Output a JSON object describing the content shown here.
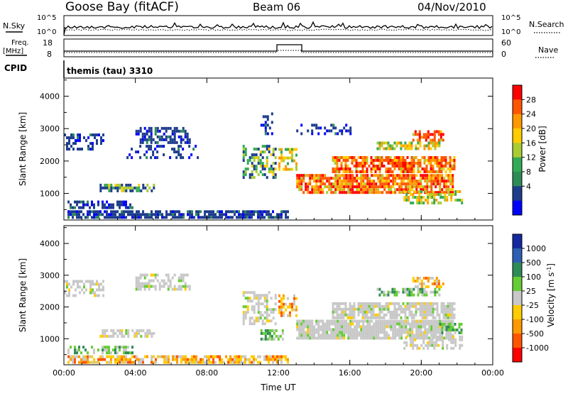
{
  "header": {
    "station": "Goose Bay (fitACF)",
    "beam": "Beam 06",
    "date": "04/Nov/2010"
  },
  "status_panels": {
    "nsky": {
      "label": "N.Sky",
      "ticks": [
        "10^5",
        "10^0"
      ],
      "right_label": "N.Search",
      "right_ticks": [
        "10^5",
        "10^0"
      ]
    },
    "freq": {
      "label_line1": "Freq.",
      "label_line2": "[MHz]",
      "ticks": [
        "18",
        "8"
      ],
      "right_label": "Nave",
      "right_ticks": [
        "60",
        "0"
      ]
    },
    "cpid": {
      "label": "CPID",
      "value": "themis (tau) 3310"
    }
  },
  "chart_data": [
    {
      "type": "heatmap",
      "name": "power",
      "ylabel": "Slant Range [km]",
      "ylim": [
        180,
        4560
      ],
      "yticks": [
        1000,
        2000,
        3000,
        4000
      ],
      "xlim": [
        0,
        24
      ],
      "xticks": [
        "00:00",
        "04:00",
        "08:00",
        "12:00",
        "16:00",
        "20:00",
        "00:00"
      ],
      "colorbar": {
        "label": "Power [dB]",
        "ticks": [
          "28",
          "24",
          "20",
          "16",
          "12",
          "8",
          "4"
        ],
        "colors": [
          "#ff0000",
          "#ff5500",
          "#ff9900",
          "#ffcc00",
          "#aacc33",
          "#33aa55",
          "#2e8b57",
          "#1e3c8c",
          "#0000ff"
        ]
      },
      "regions": [
        {
          "t0": 0.2,
          "t1": 12.5,
          "r0": 220,
          "r1": 480,
          "cls": "low",
          "density": 0.75
        },
        {
          "t0": 0.2,
          "t1": 3.8,
          "r0": 600,
          "r1": 780,
          "cls": "low",
          "density": 0.55
        },
        {
          "t0": 0.0,
          "t1": 2.2,
          "r0": 2400,
          "r1": 2850,
          "cls": "low",
          "density": 0.5
        },
        {
          "t0": 2.0,
          "t1": 5.0,
          "r0": 1050,
          "r1": 1300,
          "cls": "lowmid",
          "density": 0.65
        },
        {
          "t0": 4.0,
          "t1": 7.0,
          "r0": 2550,
          "r1": 3050,
          "cls": "low",
          "density": 0.6
        },
        {
          "t0": 3.5,
          "t1": 7.5,
          "r0": 2100,
          "r1": 2500,
          "cls": "low",
          "density": 0.3
        },
        {
          "t0": 10.0,
          "t1": 11.8,
          "r0": 1500,
          "r1": 2500,
          "cls": "lowmid",
          "density": 0.5
        },
        {
          "t0": 11.0,
          "t1": 11.6,
          "r0": 2800,
          "r1": 3500,
          "cls": "low",
          "density": 0.4
        },
        {
          "t0": 12.0,
          "t1": 13.0,
          "r0": 1700,
          "r1": 2400,
          "cls": "mid",
          "density": 0.55
        },
        {
          "t0": 13.0,
          "t1": 21.8,
          "r0": 1050,
          "r1": 1600,
          "cls": "high",
          "density": 0.85
        },
        {
          "t0": 15.0,
          "t1": 21.8,
          "r0": 1700,
          "r1": 2150,
          "cls": "high",
          "density": 0.75
        },
        {
          "t0": 17.5,
          "t1": 21.0,
          "r0": 2350,
          "r1": 2600,
          "cls": "mid",
          "density": 0.6
        },
        {
          "t0": 19.5,
          "t1": 21.2,
          "r0": 2650,
          "r1": 2950,
          "cls": "high",
          "density": 0.6
        },
        {
          "t0": 19.0,
          "t1": 22.3,
          "r0": 700,
          "r1": 1100,
          "cls": "mid",
          "density": 0.5
        },
        {
          "t0": 13.0,
          "t1": 16.0,
          "r0": 2800,
          "r1": 3150,
          "cls": "low",
          "density": 0.35
        }
      ]
    },
    {
      "type": "heatmap",
      "name": "velocity",
      "ylabel": "Slant Range [km]",
      "ylim": [
        180,
        4560
      ],
      "yticks": [
        1000,
        2000,
        3000,
        4000
      ],
      "xlim": [
        0,
        24
      ],
      "xticks": [
        "00:00",
        "04:00",
        "08:00",
        "12:00",
        "16:00",
        "20:00",
        "00:00"
      ],
      "xlabel": "Time UT",
      "colorbar": {
        "label": "Velocity [m s^-1]",
        "ticks": [
          "1000",
          "500",
          "100",
          "25",
          "-25",
          "-100",
          "-500",
          "-1000"
        ],
        "colors": [
          "#1428a0",
          "#2d5fb4",
          "#2e8b57",
          "#66cc33",
          "#c8c8c8",
          "#ffcc00",
          "#ff9900",
          "#ff5500",
          "#ff0000"
        ]
      },
      "regions": [
        {
          "t0": 0.2,
          "t1": 12.5,
          "r0": 220,
          "r1": 480,
          "cls": "vorange",
          "density": 0.7
        },
        {
          "t0": 0.2,
          "t1": 3.8,
          "r0": 600,
          "r1": 780,
          "cls": "vgreen",
          "density": 0.5
        },
        {
          "t0": 0.0,
          "t1": 2.2,
          "r0": 2400,
          "r1": 2850,
          "cls": "grey",
          "density": 0.45
        },
        {
          "t0": 2.0,
          "t1": 5.0,
          "r0": 1050,
          "r1": 1300,
          "cls": "grey",
          "density": 0.6
        },
        {
          "t0": 4.0,
          "t1": 7.0,
          "r0": 2550,
          "r1": 3050,
          "cls": "grey",
          "density": 0.6
        },
        {
          "t0": 10.0,
          "t1": 11.8,
          "r0": 1500,
          "r1": 2500,
          "cls": "grey",
          "density": 0.5
        },
        {
          "t0": 11.0,
          "t1": 12.2,
          "r0": 1000,
          "r1": 1300,
          "cls": "vgreen",
          "density": 0.6
        },
        {
          "t0": 12.0,
          "t1": 13.0,
          "r0": 1700,
          "r1": 2400,
          "cls": "vorange",
          "density": 0.45
        },
        {
          "t0": 13.0,
          "t1": 21.8,
          "r0": 1050,
          "r1": 1600,
          "cls": "grey",
          "density": 0.9
        },
        {
          "t0": 15.0,
          "t1": 21.8,
          "r0": 1700,
          "r1": 2150,
          "cls": "grey",
          "density": 0.8
        },
        {
          "t0": 17.5,
          "t1": 21.0,
          "r0": 2350,
          "r1": 2600,
          "cls": "vgreen",
          "density": 0.55
        },
        {
          "t0": 19.5,
          "t1": 21.2,
          "r0": 2650,
          "r1": 2950,
          "cls": "vorange",
          "density": 0.65
        },
        {
          "t0": 19.0,
          "t1": 22.3,
          "r0": 700,
          "r1": 1100,
          "cls": "grey",
          "density": 0.5
        },
        {
          "t0": 21.0,
          "t1": 22.3,
          "r0": 1200,
          "r1": 1500,
          "cls": "vgreen",
          "density": 0.5
        }
      ]
    }
  ]
}
